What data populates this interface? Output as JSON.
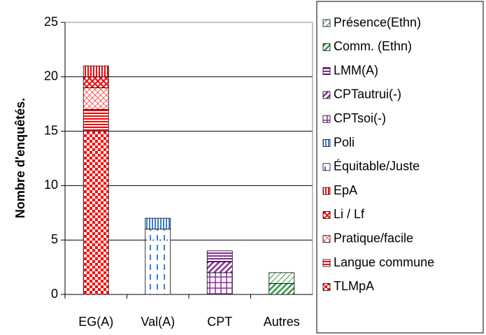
{
  "chart_data": {
    "type": "stacked_bar",
    "y_label": "Nombre d'enquêtés.",
    "categories": [
      "EG(A)",
      "Val(A)",
      "CPT",
      "Autres"
    ],
    "ylim": [
      0,
      25
    ],
    "yticks": [
      0,
      5,
      10,
      15,
      20,
      25
    ],
    "grid": true,
    "legend": "right",
    "series": [
      {
        "name": "TLMpA",
        "color": "#ff0000",
        "values": [
          15,
          0,
          0,
          0
        ]
      },
      {
        "name": "Langue commune",
        "color": "#ff0000",
        "values": [
          2,
          0,
          0,
          0
        ]
      },
      {
        "name": "Pratique/facile",
        "color": "#ff4040",
        "values": [
          2,
          0,
          0,
          0
        ]
      },
      {
        "name": "Li / Lf",
        "color": "#ff0000",
        "values": [
          1,
          0,
          0,
          0
        ]
      },
      {
        "name": "EpA",
        "color": "#ff0000",
        "values": [
          1,
          0,
          0,
          0
        ]
      },
      {
        "name": "Équitable/Juste",
        "color": "#3a7fd8",
        "values": [
          0,
          6,
          0,
          0
        ]
      },
      {
        "name": "Poli",
        "color": "#3a7fd8",
        "values": [
          0,
          1,
          0,
          0
        ]
      },
      {
        "name": "CPTsoi(-)",
        "color": "#8b2a9a",
        "values": [
          0,
          0,
          2,
          0
        ]
      },
      {
        "name": "CPTautrui(-)",
        "color": "#8b2a9a",
        "values": [
          0,
          0,
          1,
          0
        ]
      },
      {
        "name": "LMM(A)",
        "color": "#8b2a9a",
        "values": [
          0,
          0,
          1,
          0
        ]
      },
      {
        "name": "Comm. (Ethn)",
        "color": "#2e9a3e",
        "values": [
          0,
          0,
          0,
          1
        ]
      },
      {
        "name": "Présence(Ethn)",
        "color": "#2e9a3e",
        "values": [
          0,
          0,
          0,
          1
        ]
      }
    ]
  }
}
